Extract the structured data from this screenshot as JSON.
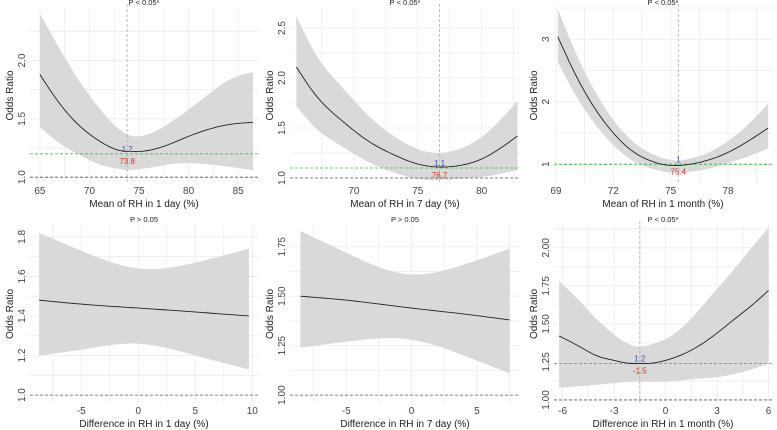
{
  "chart_data": [
    {
      "type": "line",
      "title": "P < 0.05*",
      "xlabel": "Mean of RH in 1 day (%)",
      "ylabel": "Odds Ratio",
      "xlim": [
        64,
        87
      ],
      "ylim": [
        0.95,
        2.45
      ],
      "x_ticks": [
        65,
        70,
        75,
        80,
        85
      ],
      "x_tick_labels": [
        "65",
        "70",
        "75",
        "80",
        "85"
      ],
      "y_ticks": [
        1.0,
        1.5,
        2.0
      ],
      "y_tick_labels": [
        "1.0",
        "1.5",
        "2.0"
      ],
      "x": [
        65,
        67,
        69,
        71,
        73,
        74,
        75,
        76,
        78,
        80,
        82,
        84,
        86.5
      ],
      "series": [
        {
          "name": "Odds Ratio",
          "values": [
            1.88,
            1.63,
            1.44,
            1.31,
            1.23,
            1.22,
            1.22,
            1.23,
            1.28,
            1.35,
            1.41,
            1.45,
            1.47
          ]
        },
        {
          "name": "CI upper",
          "values": [
            2.4,
            2.1,
            1.82,
            1.59,
            1.41,
            1.36,
            1.35,
            1.37,
            1.46,
            1.58,
            1.71,
            1.83,
            1.9
          ]
        },
        {
          "name": "CI lower",
          "values": [
            1.43,
            1.29,
            1.19,
            1.11,
            1.07,
            1.06,
            1.07,
            1.08,
            1.11,
            1.12,
            1.11,
            1.09,
            1.06
          ]
        }
      ],
      "min_point": {
        "x": 73.8,
        "or": 1.2,
        "or_label": "1.2",
        "x_label": "73.8"
      },
      "ref_lines": {
        "or_one": 1.0,
        "or_min": 1.2,
        "x_min": 73.8
      }
    },
    {
      "type": "line",
      "title": "P < 0.05*",
      "xlabel": "Mean of RH in 7 day (%)",
      "ylabel": "Odds Ratio",
      "xlim": [
        65,
        83
      ],
      "ylim": [
        0.95,
        2.7
      ],
      "x_ticks": [
        70,
        75,
        80
      ],
      "x_tick_labels": [
        "70",
        "75",
        "80"
      ],
      "y_ticks": [
        1.0,
        1.5,
        2.0,
        2.5
      ],
      "y_tick_labels": [
        "1.0",
        "1.5",
        "2.0",
        "2.5"
      ],
      "x": [
        65.5,
        67,
        69,
        71,
        73,
        75,
        76.7,
        78,
        80,
        82.8
      ],
      "series": [
        {
          "name": "Odds Ratio",
          "values": [
            2.11,
            1.83,
            1.58,
            1.38,
            1.24,
            1.14,
            1.11,
            1.12,
            1.19,
            1.42
          ]
        },
        {
          "name": "CI upper",
          "values": [
            2.62,
            2.24,
            1.92,
            1.64,
            1.43,
            1.29,
            1.25,
            1.28,
            1.41,
            1.77
          ]
        },
        {
          "name": "CI lower",
          "values": [
            1.72,
            1.5,
            1.32,
            1.17,
            1.06,
            0.99,
            0.98,
            0.99,
            1.01,
            1.08
          ]
        }
      ],
      "min_point": {
        "x": 76.7,
        "or": 1.1,
        "or_label": "1.1",
        "x_label": "76.7"
      },
      "ref_lines": {
        "or_one": 1.0,
        "or_min": 1.1,
        "x_min": 76.7
      }
    },
    {
      "type": "line",
      "title": "P < 0.05*",
      "xlabel": "Mean of RH in 1 month (%)",
      "ylabel": "Odds Ratio",
      "xlim": [
        68.9,
        80.3
      ],
      "ylim": [
        0.7,
        3.5
      ],
      "x_ticks": [
        69,
        72,
        75,
        78
      ],
      "x_tick_labels": [
        "69",
        "72",
        "75",
        "78"
      ],
      "y_ticks": [
        1,
        2,
        3
      ],
      "y_tick_labels": [
        "1",
        "2",
        "3"
      ],
      "x": [
        69.1,
        70,
        71,
        72,
        73,
        74,
        75,
        75.4,
        76,
        77,
        78,
        79,
        80.1
      ],
      "series": [
        {
          "name": "Odds Ratio",
          "values": [
            3.04,
            2.45,
            1.91,
            1.5,
            1.21,
            1.05,
            0.98,
            0.98,
            1.0,
            1.07,
            1.19,
            1.36,
            1.58
          ]
        },
        {
          "name": "CI upper",
          "values": [
            3.48,
            2.81,
            2.19,
            1.71,
            1.37,
            1.17,
            1.07,
            1.06,
            1.09,
            1.19,
            1.37,
            1.62,
            1.97
          ]
        },
        {
          "name": "CI lower",
          "values": [
            2.64,
            2.12,
            1.66,
            1.31,
            1.06,
            0.93,
            0.87,
            0.87,
            0.88,
            0.93,
            1.02,
            1.12,
            1.25
          ]
        }
      ],
      "min_point": {
        "x": 75.4,
        "or": 1.0,
        "or_label": "1",
        "x_label": "75.4"
      },
      "ref_lines": {
        "or_one": 1.0,
        "or_min": 1.0,
        "x_min": 75.4
      }
    },
    {
      "type": "line",
      "title": "P > 0.05",
      "xlabel": "Difference in RH in 1 day (%)",
      "ylabel": "Odds Ratio",
      "xlim": [
        -9.5,
        10.5
      ],
      "ylim": [
        0.96,
        1.86
      ],
      "x_ticks": [
        -5,
        0,
        5,
        10
      ],
      "x_tick_labels": [
        "-5",
        "0",
        "5",
        "10"
      ],
      "y_ticks": [
        1.0,
        1.2,
        1.4,
        1.6,
        1.8
      ],
      "y_tick_labels": [
        "1.0",
        "1.2",
        "1.4",
        "1.6",
        "1.8"
      ],
      "x": [
        -8.7,
        -5,
        0,
        5,
        9.7
      ],
      "series": [
        {
          "name": "Odds Ratio",
          "values": [
            1.48,
            1.46,
            1.44,
            1.42,
            1.4
          ]
        },
        {
          "name": "CI upper",
          "values": [
            1.82,
            1.73,
            1.64,
            1.67,
            1.74
          ]
        },
        {
          "name": "CI lower",
          "values": [
            1.2,
            1.23,
            1.26,
            1.2,
            1.13
          ]
        }
      ],
      "ref_lines": {
        "or_one": 1.0
      }
    },
    {
      "type": "line",
      "title": "P > 0.05",
      "xlabel": "Difference in RH in 7 day (%)",
      "ylabel": "Odds Ratio",
      "xlim": [
        -9.3,
        8.3
      ],
      "ylim": [
        0.96,
        1.86
      ],
      "x_ticks": [
        -5,
        0,
        5
      ],
      "x_tick_labels": [
        "-5",
        "0",
        "5"
      ],
      "y_ticks": [
        1.0,
        1.25,
        1.5,
        1.75
      ],
      "y_tick_labels": [
        "1.00",
        "1.25",
        "1.50",
        "1.75"
      ],
      "x": [
        -8.5,
        -5,
        0,
        4,
        7.5
      ],
      "series": [
        {
          "name": "Odds Ratio",
          "values": [
            1.5,
            1.48,
            1.44,
            1.41,
            1.38
          ]
        },
        {
          "name": "CI upper",
          "values": [
            1.83,
            1.72,
            1.61,
            1.66,
            1.74
          ]
        },
        {
          "name": "CI lower",
          "values": [
            1.24,
            1.27,
            1.28,
            1.2,
            1.11
          ]
        }
      ],
      "ref_lines": {
        "or_one": 1.0
      }
    },
    {
      "type": "line",
      "title": "P < 0.05*",
      "xlabel": "Difference in RH in 1 month (%)",
      "ylabel": "Odds Ratio",
      "xlim": [
        -6.5,
        6.2
      ],
      "ylim": [
        0.98,
        2.15
      ],
      "x_ticks": [
        -6,
        -3,
        0,
        3,
        6
      ],
      "x_tick_labels": [
        "-6",
        "-3",
        "0",
        "3",
        "6"
      ],
      "y_ticks": [
        1.0,
        1.25,
        1.5,
        1.75,
        2.0
      ],
      "y_tick_labels": [
        "1.00",
        "1.25",
        "1.50",
        "1.75",
        "2.00"
      ],
      "x": [
        -6.2,
        -5,
        -4,
        -3,
        -2,
        -1.5,
        -1,
        0,
        1,
        2,
        3,
        4,
        5,
        6
      ],
      "series": [
        {
          "name": "Odds Ratio",
          "values": [
            1.42,
            1.35,
            1.29,
            1.26,
            1.24,
            1.24,
            1.24,
            1.26,
            1.3,
            1.36,
            1.44,
            1.53,
            1.62,
            1.72
          ]
        },
        {
          "name": "CI upper",
          "values": [
            1.78,
            1.65,
            1.53,
            1.43,
            1.36,
            1.35,
            1.36,
            1.4,
            1.48,
            1.6,
            1.73,
            1.86,
            2.0,
            2.13
          ]
        },
        {
          "name": "CI lower",
          "values": [
            1.08,
            1.09,
            1.1,
            1.11,
            1.12,
            1.12,
            1.12,
            1.12,
            1.13,
            1.14,
            1.15,
            1.17,
            1.2,
            1.24
          ]
        }
      ],
      "min_point": {
        "x": -1.5,
        "or": 1.2,
        "or_label": "1.2",
        "x_label": "-1.5"
      },
      "ref_lines": {
        "or_one": 1.0,
        "or_min": 1.24,
        "x_min": -1.5
      }
    }
  ]
}
